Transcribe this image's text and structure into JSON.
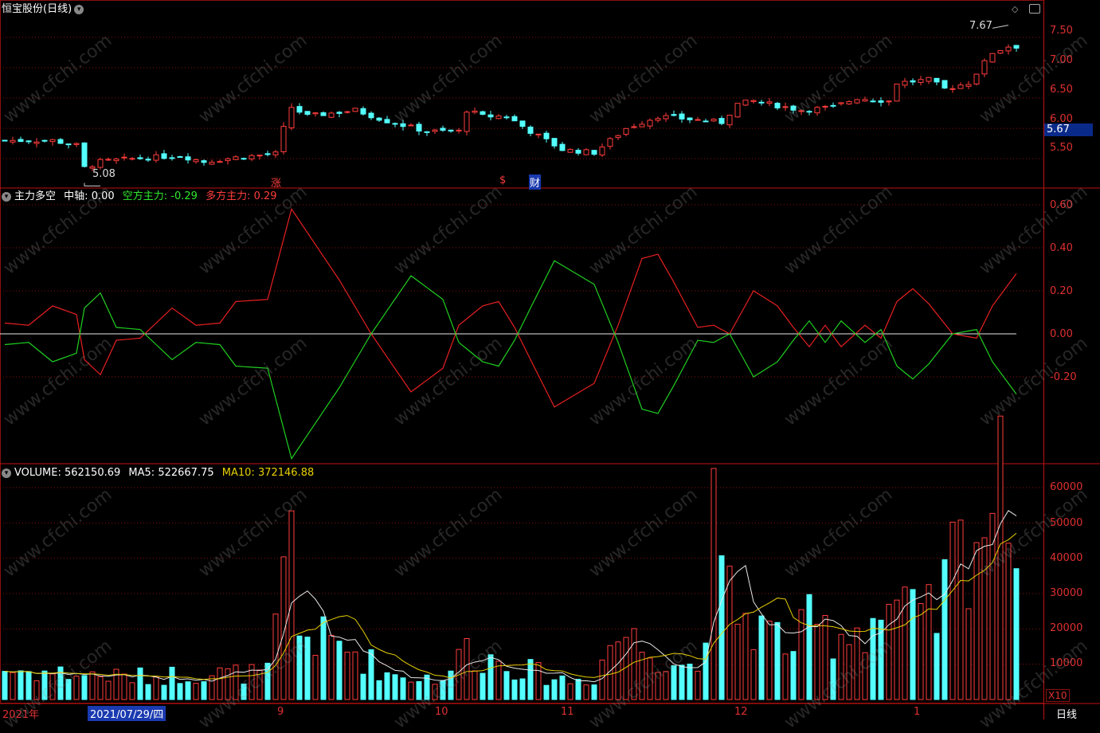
{
  "stock": {
    "title": "恒宝股份(日线)",
    "min_label": "5.08",
    "max_label": "7.67",
    "price_tag": "5.67",
    "event_up": "涨",
    "event_money": "$",
    "event_fin": "财"
  },
  "colors": {
    "up": "#ff3c3c",
    "down": "#54ffff",
    "grid": "#8a1010",
    "ma5": "#e8e8e8",
    "ma10": "#e8d000",
    "zero": "#e8e8e8"
  },
  "price_axis": [
    "7.50",
    "7.00",
    "6.50",
    "6.00",
    "5.50"
  ],
  "indicator": {
    "name": "主力多空",
    "mid_label": "中轴:",
    "mid_value": "0.00",
    "short_label": "空方主力:",
    "short_value": "-0.29",
    "long_label": "多方主力:",
    "long_value": "0.29",
    "axis": [
      "0.60",
      "0.40",
      "0.20",
      "0.00",
      "-0.20"
    ]
  },
  "volume": {
    "vol_label": "VOLUME:",
    "vol_value": "562150.69",
    "ma5_label": "MA5:",
    "ma5_value": "522667.75",
    "ma10_label": "MA10:",
    "ma10_value": "372146.88",
    "axis": [
      "60000",
      "50000",
      "40000",
      "30000",
      "20000",
      "10000"
    ],
    "unit": "X10"
  },
  "xaxis": {
    "year": "2021年",
    "date": "2021/07/29/四",
    "months": [
      "9",
      "10",
      "11",
      "12",
      "1"
    ],
    "period": "日线"
  },
  "watermark": "www.cfchi.com",
  "chart_data": {
    "type": "candlestick",
    "n": 128,
    "close_path": [
      [
        0,
        5.8
      ],
      [
        6,
        5.8
      ],
      [
        9,
        5.72
      ],
      [
        10,
        5.35
      ],
      [
        12,
        5.45
      ],
      [
        16,
        5.5
      ],
      [
        22,
        5.55
      ],
      [
        25,
        5.45
      ],
      [
        29,
        5.52
      ],
      [
        34,
        5.58
      ],
      [
        35,
        6.0
      ],
      [
        36,
        6.35
      ],
      [
        38,
        6.2
      ],
      [
        44,
        6.3
      ],
      [
        48,
        6.12
      ],
      [
        53,
        5.95
      ],
      [
        57,
        5.95
      ],
      [
        58,
        6.3
      ],
      [
        60,
        6.2
      ],
      [
        63,
        6.2
      ],
      [
        66,
        5.95
      ],
      [
        70,
        5.65
      ],
      [
        74,
        5.6
      ],
      [
        78,
        6.0
      ],
      [
        82,
        6.2
      ],
      [
        86,
        6.15
      ],
      [
        90,
        6.1
      ],
      [
        92,
        6.4
      ],
      [
        94,
        6.45
      ],
      [
        100,
        6.3
      ],
      [
        104,
        6.35
      ],
      [
        107,
        6.5
      ],
      [
        111,
        6.45
      ],
      [
        112,
        6.75
      ],
      [
        116,
        6.8
      ],
      [
        118,
        6.65
      ],
      [
        121,
        6.75
      ],
      [
        124,
        7.25
      ],
      [
        126,
        7.35
      ],
      [
        127,
        7.35
      ]
    ],
    "force_path": [
      [
        0,
        0.05
      ],
      [
        3,
        0.04
      ],
      [
        6,
        0.13
      ],
      [
        9,
        0.09
      ],
      [
        10,
        -0.12
      ],
      [
        12,
        -0.19
      ],
      [
        14,
        -0.03
      ],
      [
        17,
        -0.02
      ],
      [
        21,
        0.12
      ],
      [
        24,
        0.04
      ],
      [
        27,
        0.05
      ],
      [
        29,
        0.15
      ],
      [
        33,
        0.16
      ],
      [
        36,
        0.58
      ],
      [
        38,
        0.47
      ],
      [
        42,
        0.25
      ],
      [
        46,
        0
      ],
      [
        51,
        -0.27
      ],
      [
        55,
        -0.16
      ],
      [
        57,
        0.04
      ],
      [
        60,
        0.13
      ],
      [
        62,
        0.15
      ],
      [
        64,
        0.03
      ],
      [
        66,
        -0.12
      ],
      [
        69,
        -0.34
      ],
      [
        74,
        -0.23
      ],
      [
        77,
        0.04
      ],
      [
        80,
        0.35
      ],
      [
        82,
        0.37
      ],
      [
        84,
        0.24
      ],
      [
        87,
        0.03
      ],
      [
        89,
        0.04
      ],
      [
        91,
        0
      ],
      [
        94,
        0.2
      ],
      [
        97,
        0.13
      ],
      [
        99,
        0.03
      ],
      [
        101,
        -0.06
      ],
      [
        103,
        0.04
      ],
      [
        105,
        -0.06
      ],
      [
        108,
        0.04
      ],
      [
        110,
        -0.02
      ],
      [
        112,
        0.15
      ],
      [
        114,
        0.21
      ],
      [
        116,
        0.14
      ],
      [
        119,
        0
      ],
      [
        122,
        -0.02
      ],
      [
        124,
        0.13
      ],
      [
        127,
        0.28
      ]
    ],
    "volume_path": [
      [
        0,
        8000
      ],
      [
        8,
        7000
      ],
      [
        16,
        6000
      ],
      [
        24,
        7000
      ],
      [
        33,
        7000
      ],
      [
        35,
        30000
      ],
      [
        36,
        45000
      ],
      [
        37,
        18000
      ],
      [
        40,
        16000
      ],
      [
        44,
        13000
      ],
      [
        48,
        7000
      ],
      [
        52,
        6000
      ],
      [
        56,
        6000
      ],
      [
        57,
        15000
      ],
      [
        59,
        12000
      ],
      [
        63,
        10000
      ],
      [
        67,
        7000
      ],
      [
        71,
        5000
      ],
      [
        74,
        6000
      ],
      [
        76,
        15000
      ],
      [
        78,
        18000
      ],
      [
        80,
        14000
      ],
      [
        84,
        11000
      ],
      [
        87,
        8000
      ],
      [
        89,
        45000
      ],
      [
        90,
        30000
      ],
      [
        93,
        22000
      ],
      [
        96,
        18000
      ],
      [
        99,
        15000
      ],
      [
        101,
        20000
      ],
      [
        104,
        18000
      ],
      [
        108,
        20000
      ],
      [
        111,
        25000
      ],
      [
        114,
        22000
      ],
      [
        117,
        22000
      ],
      [
        119,
        38000
      ],
      [
        122,
        45000
      ],
      [
        124,
        55000
      ],
      [
        127,
        56000
      ]
    ],
    "ylim_price": [
      5.2,
      7.8
    ],
    "ylim_indicator": [
      -0.6,
      0.65
    ],
    "ylim_volume": [
      0,
      60000
    ]
  }
}
